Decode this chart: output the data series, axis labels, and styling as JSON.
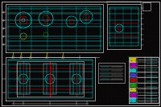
{
  "bg_color": "#080808",
  "dot_color": "#2a0808",
  "wh": "#c8c8c8",
  "cy": "#00e0e0",
  "rd": "#e00000",
  "yw": "#e0e000",
  "gn": "#00c000",
  "mg": "#c000c0",
  "bl": "#4040ff",
  "fig_width": 2.0,
  "fig_height": 1.33,
  "dpi": 100
}
